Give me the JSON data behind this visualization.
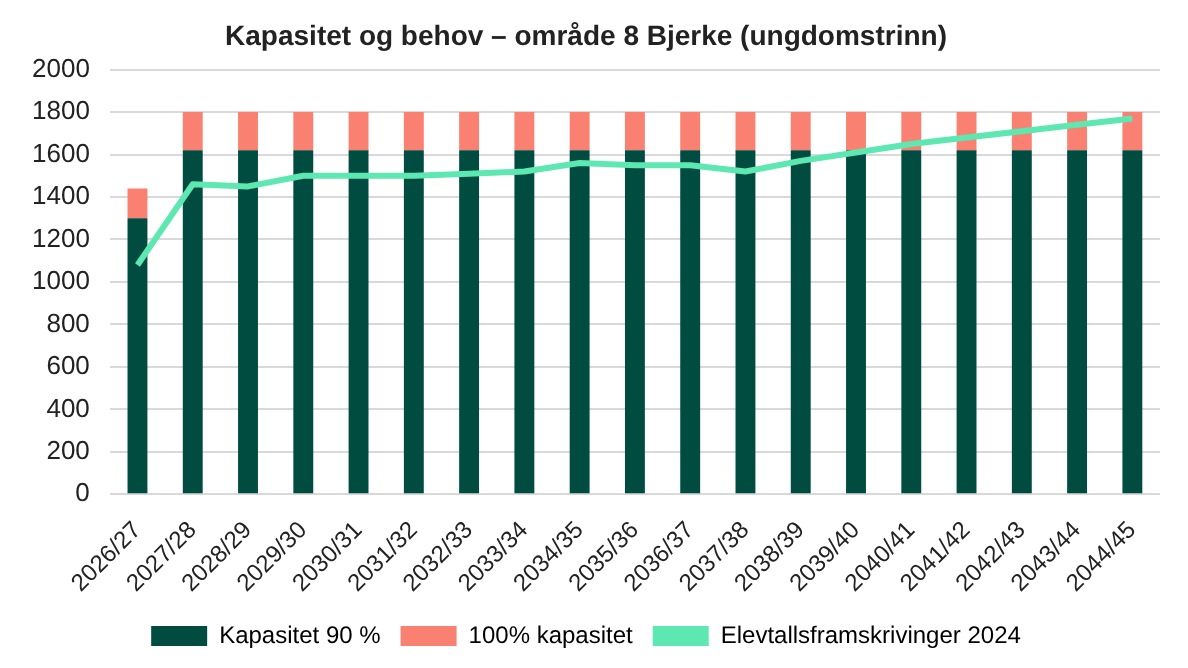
{
  "chart_data": {
    "type": "bar",
    "title": "Kapasitet og behov – område 8 Bjerke (ungdomstrinn)",
    "stacked": true,
    "categories": [
      "2026/27",
      "2027/28",
      "2028/29",
      "2029/30",
      "2030/31",
      "2031/32",
      "2032/33",
      "2033/34",
      "2034/35",
      "2035/36",
      "2036/37",
      "2037/38",
      "2038/39",
      "2039/40",
      "2040/41",
      "2041/42",
      "2042/43",
      "2043/44",
      "2044/45"
    ],
    "series": [
      {
        "name": "Kapasitet 90 %",
        "color": "#004c41",
        "values": [
          1300,
          1620,
          1620,
          1620,
          1620,
          1620,
          1620,
          1620,
          1620,
          1620,
          1620,
          1620,
          1620,
          1620,
          1620,
          1620,
          1620,
          1620,
          1620
        ]
      },
      {
        "name": "100% kapasitet",
        "color": "#fa8072",
        "values": [
          140,
          180,
          180,
          180,
          180,
          180,
          180,
          180,
          180,
          180,
          180,
          180,
          180,
          180,
          180,
          180,
          180,
          180,
          180
        ]
      },
      {
        "name": "Elevtallsframskrivinger 2024",
        "type": "line",
        "color": "#5ce8b0",
        "values": [
          1080,
          1460,
          1450,
          1500,
          1500,
          1500,
          1510,
          1520,
          1560,
          1550,
          1550,
          1520,
          1570,
          1610,
          1650,
          1680,
          1710,
          1740,
          1770
        ]
      }
    ],
    "ylim": [
      0,
      2000
    ],
    "yticks": [
      0,
      200,
      400,
      600,
      800,
      1000,
      1200,
      1400,
      1600,
      1800,
      2000
    ],
    "grid": "y",
    "legend": "bottom",
    "marker": "none"
  }
}
